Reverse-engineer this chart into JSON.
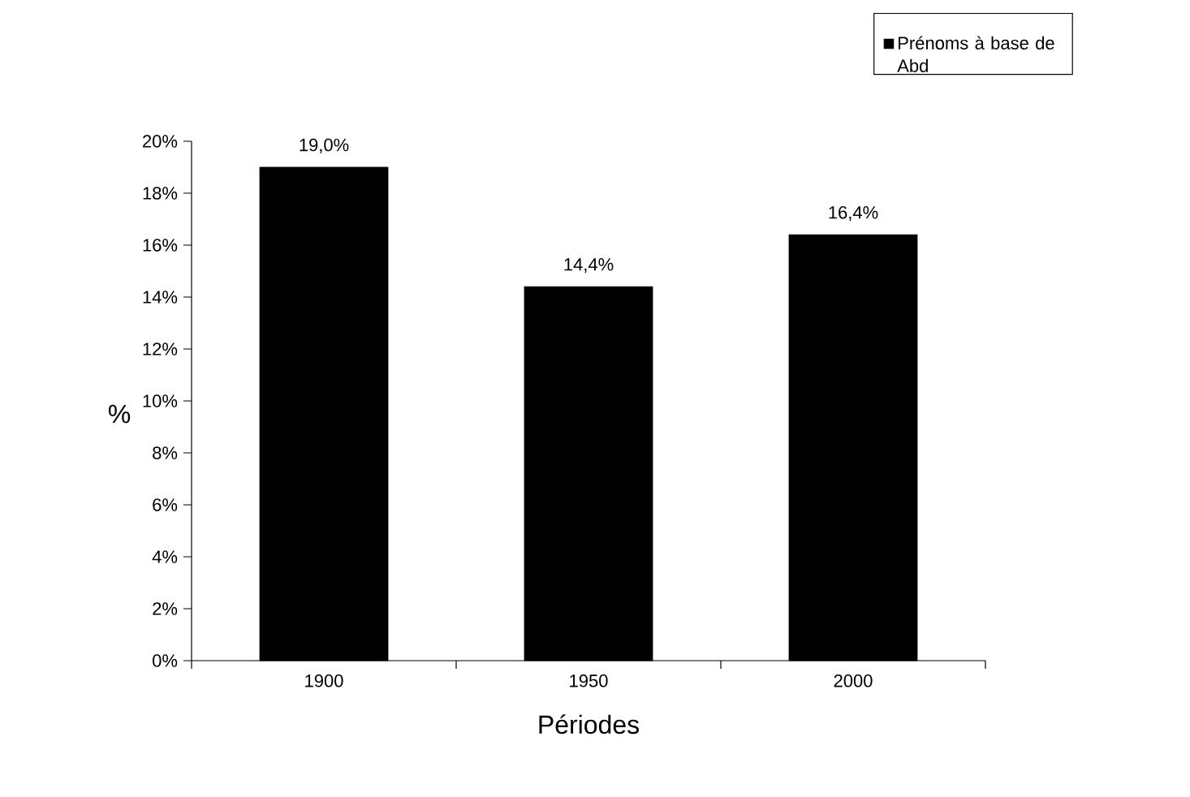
{
  "chart_data": {
    "type": "bar",
    "xlabel": "Périodes",
    "ylabel": "%",
    "categories": [
      "1900",
      "1950",
      "2000"
    ],
    "series": [
      {
        "name": "Prénoms à base de Abd",
        "color": "#000000",
        "values": [
          19.0,
          14.4,
          16.4
        ],
        "value_labels": [
          "19,0%",
          "14,4%",
          "16,4%"
        ]
      }
    ],
    "ylim": [
      0,
      20
    ],
    "yticks": [
      {
        "value": 0,
        "label": "0%"
      },
      {
        "value": 2,
        "label": "2%"
      },
      {
        "value": 4,
        "label": "4%"
      },
      {
        "value": 6,
        "label": "6%"
      },
      {
        "value": 8,
        "label": "8%"
      },
      {
        "value": 10,
        "label": "10%"
      },
      {
        "value": 12,
        "label": "12%"
      },
      {
        "value": 14,
        "label": "14%"
      },
      {
        "value": 16,
        "label": "16%"
      },
      {
        "value": 18,
        "label": "18%"
      },
      {
        "value": 20,
        "label": "20%"
      }
    ],
    "grid": false,
    "legend": "top right"
  }
}
